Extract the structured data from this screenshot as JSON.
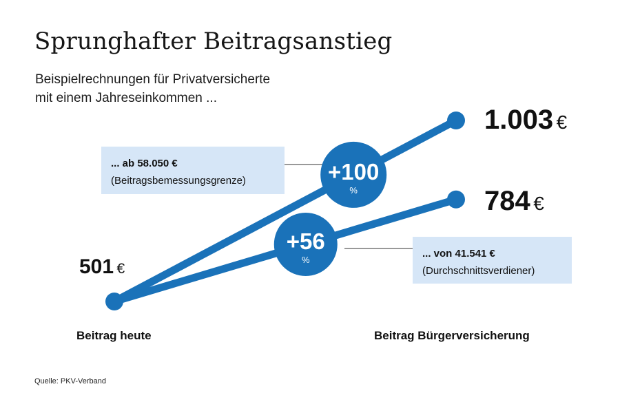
{
  "title": "Sprunghafter Beitragsanstieg",
  "subtitle": [
    "Beispielrechnungen für Privatversicherte",
    "mit einem Jahreseinkommen ..."
  ],
  "source": "Quelle: PKV-Verband",
  "colors": {
    "line": "#1a72b9",
    "callout_bg": "#d6e6f7",
    "connector": "#333333",
    "text": "#111111"
  },
  "chart_data": {
    "type": "line",
    "categories": [
      "Beitrag heute",
      "Beitrag Bürgerversicherung"
    ],
    "unit": "€",
    "series": [
      {
        "name": "... ab 58.050 €",
        "note": "(Beitragsbemessungsgrenze)",
        "values": [
          501,
          1003
        ],
        "value_labels": [
          "501",
          "1.003"
        ],
        "change": {
          "value": "+100",
          "unit": "%"
        }
      },
      {
        "name": "... von 41.541 €",
        "note": "(Durchschnittsverdiener)",
        "values": [
          501,
          784
        ],
        "value_labels": [
          "501",
          "784"
        ],
        "change": {
          "value": "+56",
          "unit": "%"
        }
      }
    ]
  }
}
